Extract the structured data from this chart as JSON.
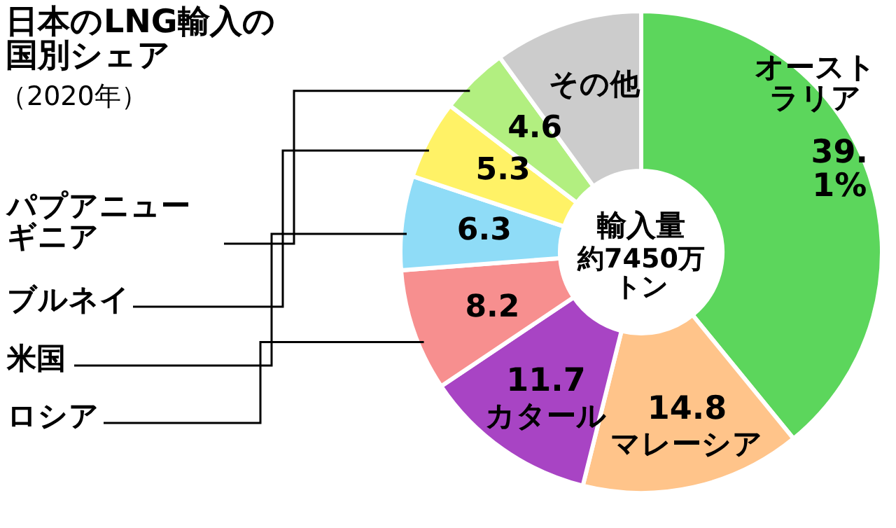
{
  "chart_data": {
    "type": "donut",
    "title": "日本のLNG輸入の国別シェア",
    "subtitle": "（2020年）",
    "annotations": [
      "輸入量",
      "約7450万トン"
    ],
    "categories": [
      "オーストラリア",
      "マレーシア",
      "カタール",
      "ロシア",
      "米国",
      "ブルネイ",
      "パプアニューギニア",
      "その他"
    ],
    "values": [
      39.1,
      14.8,
      11.7,
      8.2,
      6.3,
      5.3,
      4.6,
      10.0
    ],
    "value_labels": [
      "39.1%",
      "14.8",
      "11.7",
      "8.2",
      "6.3",
      "5.3",
      "4.6",
      null
    ],
    "colors": [
      "#5cd65c",
      "#ffc48a",
      "#a844c4",
      "#f78f8f",
      "#8fdcf7",
      "#fff266",
      "#b2ef80",
      "#cccccc"
    ]
  }
}
